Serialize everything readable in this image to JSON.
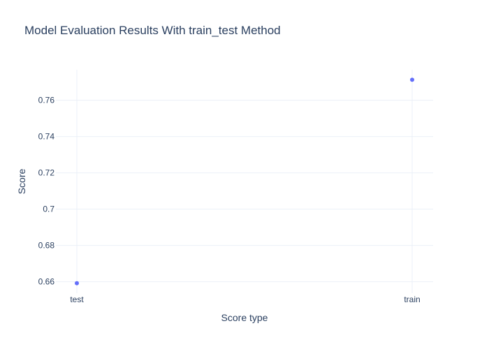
{
  "chart_data": {
    "type": "scatter",
    "title": "Model Evaluation Results With train_test Method",
    "xlabel": "Score type",
    "ylabel": "Score",
    "categories": [
      "test",
      "train"
    ],
    "series": [
      {
        "values": [
          0.6592,
          0.7713
        ]
      }
    ],
    "yticks": [
      "0.66",
      "0.68",
      "0.7",
      "0.72",
      "0.74",
      "0.76"
    ],
    "ylim": [
      0.6537,
      0.7768
    ],
    "grid": true,
    "legend": "none",
    "colors": {
      "marker": "#636efa",
      "grid": "#ebf0f8",
      "text": "#2a3f5f",
      "background": "#ffffff"
    }
  }
}
